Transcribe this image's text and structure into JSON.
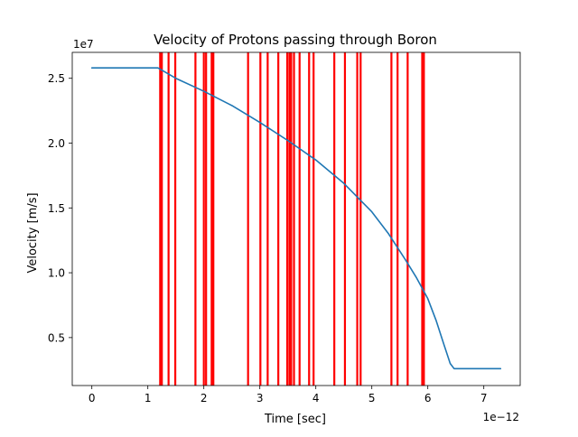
{
  "chart_data": {
    "type": "line",
    "title": "Velocity of Protons passing through Boron",
    "xlabel": "Time [sec]",
    "ylabel": "Velocity [m/s]",
    "x_offset_label": "1e−12",
    "y_offset_label": "1e7",
    "xlim": [
      -0.35,
      7.65
    ],
    "ylim": [
      1.3,
      27.0
    ],
    "x_ticks": [
      0,
      1,
      2,
      3,
      4,
      5,
      6,
      7
    ],
    "x_tick_labels": [
      "0",
      "1",
      "2",
      "3",
      "4",
      "5",
      "6",
      "7"
    ],
    "y_ticks": [
      5,
      10,
      15,
      20,
      25
    ],
    "y_tick_labels": [
      "0.5",
      "1.0",
      "1.5",
      "2.0",
      "2.5"
    ],
    "grid": false,
    "series": [
      {
        "color": "#1f77b4",
        "x": [
          0.0,
          1.18,
          1.5,
          2.0,
          2.5,
          3.0,
          3.5,
          4.0,
          4.5,
          5.0,
          5.3,
          5.6,
          5.8,
          6.0,
          6.15,
          6.3,
          6.4,
          6.47,
          6.55,
          7.3
        ],
        "y": [
          25.8,
          25.8,
          25.0,
          24.0,
          22.9,
          21.6,
          20.2,
          18.7,
          16.9,
          14.7,
          13.0,
          11.0,
          9.6,
          8.0,
          6.3,
          4.3,
          3.0,
          2.6,
          2.6,
          2.6
        ]
      }
    ],
    "vlines": {
      "color": "#ff0000",
      "x": [
        1.22,
        1.25,
        1.37,
        1.49,
        1.85,
        2.0,
        2.04,
        2.14,
        2.17,
        2.79,
        3.01,
        3.14,
        3.33,
        3.49,
        3.53,
        3.56,
        3.61,
        3.71,
        3.88,
        3.96,
        4.33,
        4.52,
        4.74,
        4.8,
        5.35,
        5.46,
        5.64,
        5.9,
        5.93
      ]
    }
  }
}
